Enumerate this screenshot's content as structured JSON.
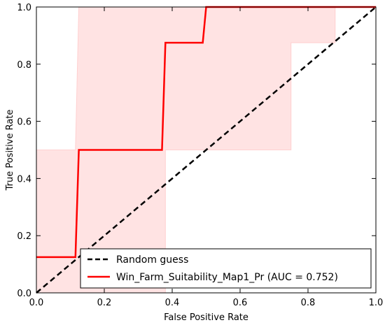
{
  "chart_data": {
    "type": "line",
    "title": "",
    "xlabel": "False Positive Rate",
    "ylabel": "True Positive Rate",
    "xlim": [
      0.0,
      1.0
    ],
    "ylim": [
      0.0,
      1.0
    ],
    "x_ticks": [
      0.0,
      0.2,
      0.4,
      0.6,
      0.8,
      1.0
    ],
    "y_ticks": [
      0.0,
      0.2,
      0.4,
      0.6,
      0.8,
      1.0
    ],
    "x_tick_labels": [
      "0.0",
      "0.2",
      "0.4",
      "0.6",
      "0.8",
      "1.0"
    ],
    "y_tick_labels": [
      "0.0",
      "0.2",
      "0.4",
      "0.6",
      "0.8",
      "1.0"
    ],
    "grid": false,
    "legend_position": "lower-right",
    "series": [
      {
        "name": "Random guess",
        "style": "dashed",
        "color": "#000000",
        "x": [
          0.0,
          1.0
        ],
        "y": [
          0.0,
          1.0
        ]
      },
      {
        "name": "Win_Farm_Suitability_Map1_Pr (AUC = 0.752)",
        "style": "solid",
        "color": "#ff0000",
        "x": [
          0.0,
          0.115,
          0.115,
          0.125,
          0.125,
          0.37,
          0.37,
          0.38,
          0.38,
          0.49,
          0.49,
          0.5,
          0.5,
          1.0
        ],
        "y": [
          0.125,
          0.125,
          0.125,
          0.5,
          0.5,
          0.5,
          0.5,
          0.875,
          0.875,
          0.875,
          0.875,
          1.0,
          1.0,
          1.0
        ]
      }
    ],
    "confidence_band": {
      "color": "#ffcccc",
      "opacity": 0.55,
      "upper": {
        "x": [
          0.0,
          0.115,
          0.115,
          0.125,
          0.125,
          1.0
        ],
        "y": [
          0.5,
          0.5,
          0.5,
          1.0,
          1.0,
          1.0
        ]
      },
      "lower": {
        "x": [
          0.24,
          0.24,
          0.38,
          0.38,
          0.75,
          0.75,
          0.88,
          0.88,
          1.0
        ],
        "y": [
          0.0,
          0.0,
          0.0,
          0.5,
          0.5,
          0.875,
          0.875,
          1.0,
          1.0
        ]
      }
    }
  }
}
